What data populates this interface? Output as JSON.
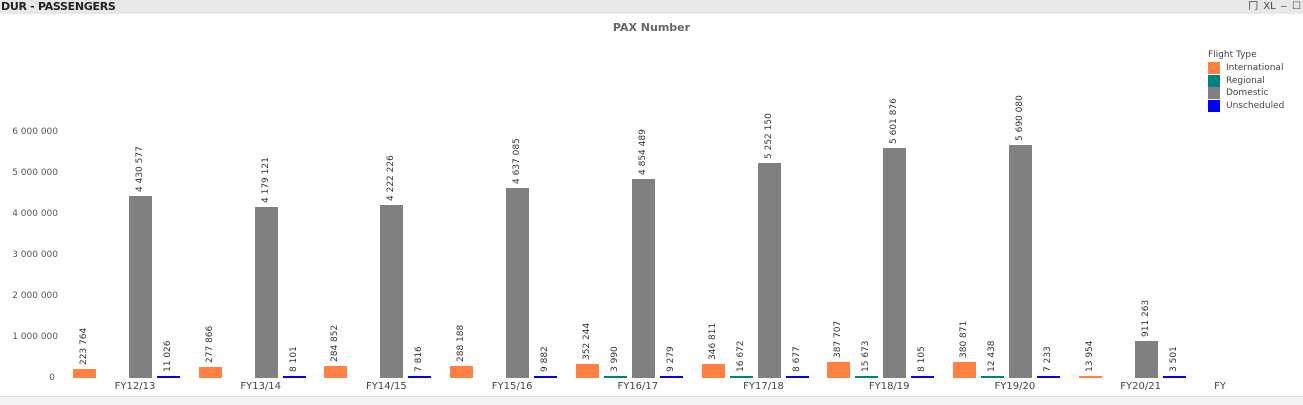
{
  "window": {
    "title": "DUR - PASSENGERS",
    "icons": [
      "table-view-icon",
      "excel-export-icon",
      "minimize-icon",
      "maximize-icon"
    ],
    "icon_glyphs": [
      "冂",
      "XL",
      "‒",
      "☐"
    ]
  },
  "legend": {
    "title": "Flight Type",
    "items": [
      {
        "label": "International",
        "color": "#FF8040"
      },
      {
        "label": "Regional",
        "color": "#008080"
      },
      {
        "label": "Domestic",
        "color": "#808080"
      },
      {
        "label": "Unscheduled",
        "color": "#0000FF"
      }
    ]
  },
  "y_ticks": [
    "6 000 000",
    "5 000 000",
    "4 000 000",
    "3 000 000",
    "2 000 000",
    "1 000 000",
    "0"
  ],
  "chart_data": {
    "type": "bar",
    "title": "PAX Number",
    "xlabel": "FY",
    "ylabel": "",
    "ylim": [
      0,
      6000000
    ],
    "grid": false,
    "legend_position": "top-right",
    "categories": [
      "FY12/13",
      "FY13/14",
      "FY14/15",
      "FY15/16",
      "FY16/17",
      "FY17/18",
      "FY18/19",
      "FY19/20",
      "FY20/21"
    ],
    "series": [
      {
        "name": "International",
        "color": "#FF8040",
        "values": [
          223764,
          277866,
          284852,
          288188,
          352244,
          346811,
          387707,
          380871,
          13954
        ],
        "labels": [
          "223 764",
          "277 866",
          "284 852",
          "288 188",
          "352 244",
          "346 811",
          "387 707",
          "380 871",
          "13 954"
        ]
      },
      {
        "name": "Regional",
        "color": "#008080",
        "values": [
          null,
          null,
          null,
          null,
          3990,
          16672,
          15673,
          12438,
          null
        ],
        "labels": [
          null,
          null,
          null,
          null,
          "3 990",
          "16 672",
          "15 673",
          "12 438",
          null
        ]
      },
      {
        "name": "Domestic",
        "color": "#808080",
        "values": [
          4430577,
          4179121,
          4222226,
          4637085,
          4854489,
          5252150,
          5601876,
          5690080,
          911263
        ],
        "labels": [
          "4 430 577",
          "4 179 121",
          "4 222 226",
          "4 637 085",
          "4 854 489",
          "5 252 150",
          "5 601 876",
          "5 690 080",
          "911 263"
        ]
      },
      {
        "name": "Unscheduled",
        "color": "#0000FF",
        "values": [
          11026,
          8101,
          7816,
          9882,
          9279,
          8677,
          8105,
          7233,
          3501
        ],
        "labels": [
          "11 026",
          "8 101",
          "7 816",
          "9 882",
          "9 279",
          "8 677",
          "8 105",
          "7 233",
          "3 501"
        ]
      }
    ]
  }
}
